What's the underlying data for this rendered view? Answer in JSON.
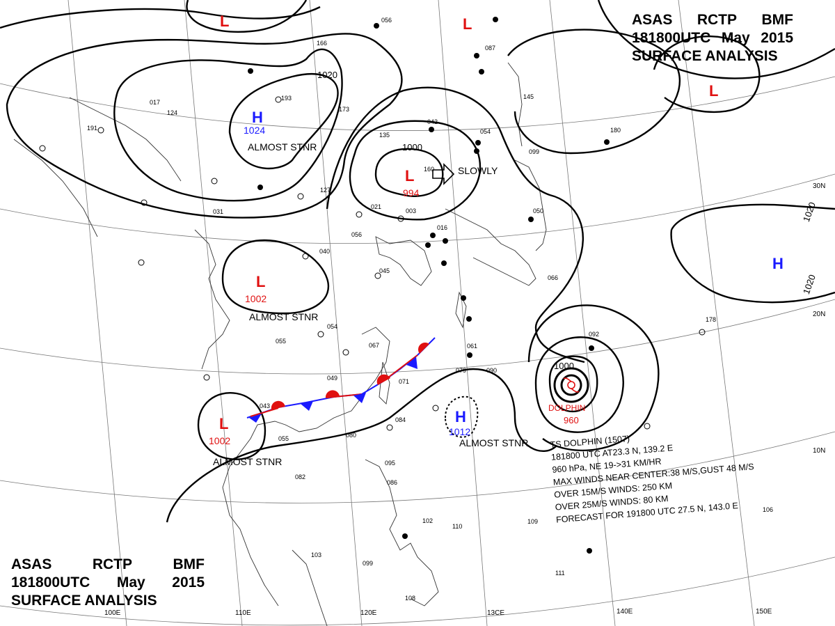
{
  "header": {
    "line1": [
      "ASAS",
      "RCTP",
      "BMF"
    ],
    "line2": [
      "181800UTC",
      "May",
      "2015"
    ],
    "line3": "SURFACE ANALYSIS"
  },
  "lat_labels": [
    "30N",
    "20N",
    "10N"
  ],
  "lon_labels": [
    "100E",
    "110E",
    "120E",
    "13CE",
    "140E",
    "150E"
  ],
  "colors": {
    "high": "#1a1aff",
    "low": "#e01010",
    "isobar": "#000000",
    "front_blue": "#1a1aff",
    "front_red": "#e01010"
  },
  "pressure_centers": [
    {
      "type": "H",
      "value": "1024",
      "note": "ALMOST STNR"
    },
    {
      "type": "L",
      "value": "994",
      "note": "SLOWLY"
    },
    {
      "type": "L",
      "value": "1002",
      "note": "ALMOST STNR"
    },
    {
      "type": "L",
      "value": "1002",
      "note": "ALMOST STNR"
    },
    {
      "type": "H",
      "value": "1012",
      "note": "ALMOST STNR"
    },
    {
      "type": "H",
      "value": "",
      "note": ""
    },
    {
      "type": "L",
      "value": "",
      "note": ""
    },
    {
      "type": "L",
      "value": "",
      "note": ""
    },
    {
      "type": "L",
      "value": "",
      "note": ""
    }
  ],
  "isobar_labels": [
    "1020",
    "1000",
    "1000",
    "1020",
    "1020"
  ],
  "typhoon": {
    "name": "DOLPHIN",
    "pressure": "960",
    "isobar_label": "1000"
  },
  "storm_info": [
    "TS DOLPHIN (1507)",
    "181800 UTC AT23.3 N, 139.2 E",
    "960 hPa, NE 19->31 KM/HR",
    "MAX WINDS NEAR CENTER:38 M/S,GUST 48 M/S",
    "OVER 15M/S WINDS: 250 KM",
    "OVER 25M/S WINDS: 80 KM",
    "FORECAST FOR 191800 UTC 27.5 N, 143.0 E"
  ],
  "stations": [
    "056",
    "166",
    "193",
    "173",
    "042",
    "054",
    "087",
    "145",
    "099",
    "180",
    "021",
    "003",
    "016",
    "056",
    "045",
    "040",
    "054",
    "055",
    "067",
    "071",
    "061",
    "079",
    "090",
    "092",
    "049",
    "043",
    "055",
    "084",
    "080",
    "082",
    "095",
    "086",
    "102",
    "110",
    "106",
    "109",
    "111",
    "103",
    "099",
    "108",
    "178",
    "191",
    "124",
    "127",
    "050",
    "066",
    "160",
    "031",
    "017",
    "135"
  ]
}
